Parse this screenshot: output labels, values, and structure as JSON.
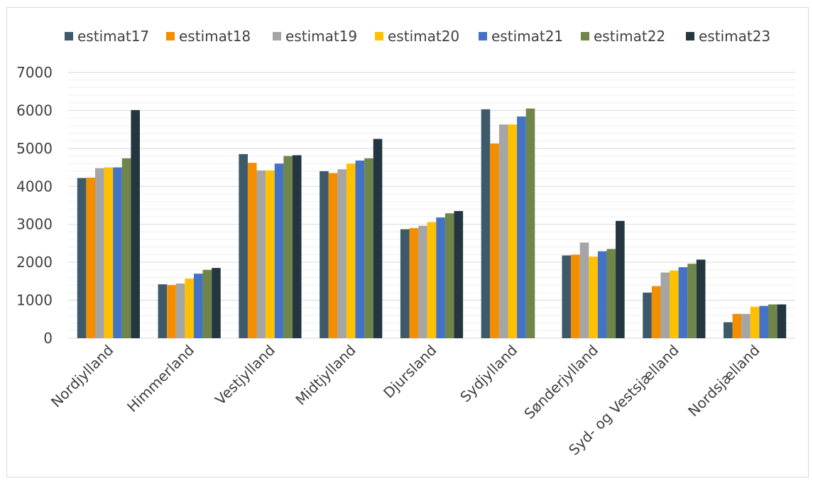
{
  "chart_data": {
    "type": "bar",
    "title": "",
    "xlabel": "",
    "ylabel": "",
    "ylim": [
      0,
      7000
    ],
    "yticks": [
      "0",
      "1000",
      "2000",
      "3000",
      "4000",
      "5000",
      "6000",
      "7000"
    ],
    "grid": true,
    "legend_position": "top",
    "categories": [
      "Nordjylland",
      "Himmerland",
      "Vestjylland",
      "Midtjylland",
      "Djursland",
      "Sydjylland",
      "Sønderjylland",
      "Syd- og Vestsjælland",
      "Nordsjælland"
    ],
    "series": [
      {
        "name": "estimat17",
        "color": "#3d5a6b",
        "values": [
          4220,
          1420,
          4850,
          4400,
          2870,
          6030,
          2180,
          1200,
          420
        ]
      },
      {
        "name": "estimat18",
        "color": "#f28e00",
        "values": [
          4230,
          1400,
          4620,
          4350,
          2900,
          5130,
          2200,
          1370,
          640
        ]
      },
      {
        "name": "estimat19",
        "color": "#a5a5a5",
        "values": [
          4480,
          1440,
          4420,
          4450,
          2960,
          5630,
          2520,
          1730,
          640
        ]
      },
      {
        "name": "estimat20",
        "color": "#ffc000",
        "values": [
          4500,
          1570,
          4420,
          4600,
          3060,
          5630,
          2150,
          1780,
          830
        ]
      },
      {
        "name": "estimat21",
        "color": "#4472c4",
        "values": [
          4500,
          1700,
          4600,
          4680,
          3180,
          5840,
          2290,
          1870,
          850
        ]
      },
      {
        "name": "estimat22",
        "color": "#70854a",
        "values": [
          4740,
          1800,
          4800,
          4740,
          3290,
          6050,
          2350,
          1960,
          890
        ]
      },
      {
        "name": "estimat23",
        "color": "#243640",
        "values": [
          6010,
          1850,
          4820,
          5250,
          3350,
          null,
          3090,
          2070,
          890
        ]
      }
    ]
  }
}
